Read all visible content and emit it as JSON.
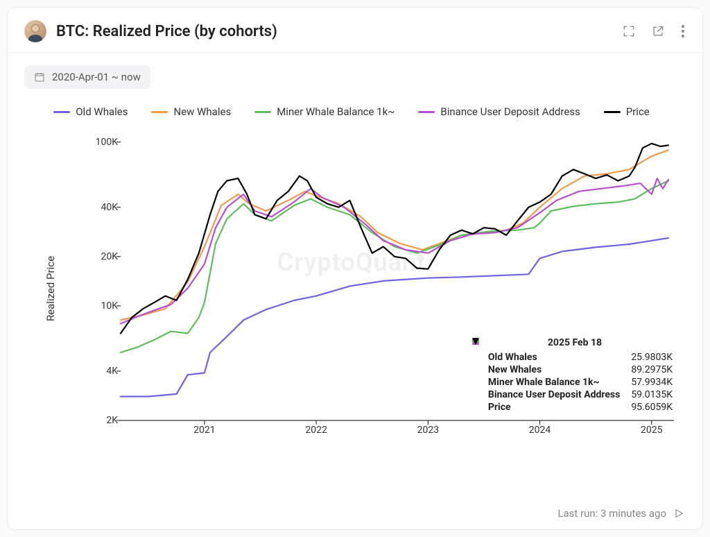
{
  "header": {
    "title": "BTC: Realized Price (by cohorts)"
  },
  "date_range": "2020-Apr-01 ~ now",
  "watermark": "CryptoQuant",
  "footer": {
    "label": "Last run: 3 minutes ago"
  },
  "chart": {
    "type": "line",
    "y_axis": {
      "label": "Realized Price",
      "scale": "log",
      "ylim": [
        2000,
        120000
      ],
      "ticks": [
        {
          "v": 2000,
          "label": "2K"
        },
        {
          "v": 4000,
          "label": "4K"
        },
        {
          "v": 10000,
          "label": "10K"
        },
        {
          "v": 20000,
          "label": "20K"
        },
        {
          "v": 40000,
          "label": "40K"
        },
        {
          "v": 100000,
          "label": "100K"
        }
      ],
      "label_fontsize": 15,
      "tick_fontsize": 14
    },
    "x_axis": {
      "xlim": [
        2020.25,
        2025.2
      ],
      "ticks": [
        {
          "v": 2021,
          "label": "2021"
        },
        {
          "v": 2022,
          "label": "2022"
        },
        {
          "v": 2023,
          "label": "2023"
        },
        {
          "v": 2024,
          "label": "2024"
        },
        {
          "v": 2025,
          "label": "2025"
        }
      ],
      "tick_fontsize": 14
    },
    "background_color": "#ffffff",
    "axis_line_color": "#333333",
    "line_width": 2.2,
    "series": [
      {
        "id": "old_whales",
        "name": "Old Whales",
        "color": "#6e62e5",
        "points": [
          [
            2020.25,
            2800
          ],
          [
            2020.5,
            2800
          ],
          [
            2020.75,
            2900
          ],
          [
            2020.85,
            3800
          ],
          [
            2021.0,
            3900
          ],
          [
            2021.05,
            5200
          ],
          [
            2021.2,
            6500
          ],
          [
            2021.35,
            8200
          ],
          [
            2021.55,
            9500
          ],
          [
            2021.8,
            10800
          ],
          [
            2022.0,
            11500
          ],
          [
            2022.3,
            13200
          ],
          [
            2022.6,
            14200
          ],
          [
            2023.0,
            14800
          ],
          [
            2023.3,
            15000
          ],
          [
            2023.6,
            15300
          ],
          [
            2023.9,
            15600
          ],
          [
            2024.0,
            19500
          ],
          [
            2024.2,
            21500
          ],
          [
            2024.5,
            22800
          ],
          [
            2024.8,
            23800
          ],
          [
            2025.0,
            25000
          ],
          [
            2025.15,
            25980
          ]
        ]
      },
      {
        "id": "new_whales",
        "name": "New Whales",
        "color": "#f2994a",
        "points": [
          [
            2020.25,
            8200
          ],
          [
            2020.45,
            8800
          ],
          [
            2020.65,
            9600
          ],
          [
            2020.85,
            14000
          ],
          [
            2021.0,
            23000
          ],
          [
            2021.15,
            41000
          ],
          [
            2021.3,
            48000
          ],
          [
            2021.4,
            42000
          ],
          [
            2021.55,
            38000
          ],
          [
            2021.75,
            44000
          ],
          [
            2021.9,
            50000
          ],
          [
            2022.0,
            47000
          ],
          [
            2022.2,
            42000
          ],
          [
            2022.4,
            35000
          ],
          [
            2022.55,
            28000
          ],
          [
            2022.75,
            24000
          ],
          [
            2022.95,
            22000
          ],
          [
            2023.1,
            24000
          ],
          [
            2023.3,
            27000
          ],
          [
            2023.5,
            28000
          ],
          [
            2023.7,
            29000
          ],
          [
            2023.85,
            32000
          ],
          [
            2024.0,
            40000
          ],
          [
            2024.2,
            52000
          ],
          [
            2024.4,
            62000
          ],
          [
            2024.6,
            64000
          ],
          [
            2024.8,
            68000
          ],
          [
            2025.0,
            82000
          ],
          [
            2025.15,
            89297
          ]
        ]
      },
      {
        "id": "miner",
        "name": "Miner Whale Balance 1k~",
        "color": "#5bbf5b",
        "points": [
          [
            2020.25,
            5200
          ],
          [
            2020.4,
            5600
          ],
          [
            2020.55,
            6200
          ],
          [
            2020.7,
            7000
          ],
          [
            2020.85,
            6800
          ],
          [
            2020.95,
            8500
          ],
          [
            2021.0,
            10500
          ],
          [
            2021.1,
            24000
          ],
          [
            2021.2,
            34000
          ],
          [
            2021.35,
            42000
          ],
          [
            2021.45,
            36000
          ],
          [
            2021.6,
            33000
          ],
          [
            2021.8,
            41000
          ],
          [
            2021.95,
            45000
          ],
          [
            2022.1,
            40000
          ],
          [
            2022.3,
            36000
          ],
          [
            2022.5,
            28000
          ],
          [
            2022.7,
            23000
          ],
          [
            2022.9,
            21000
          ],
          [
            2023.1,
            23500
          ],
          [
            2023.3,
            27000
          ],
          [
            2023.55,
            28500
          ],
          [
            2023.8,
            29000
          ],
          [
            2023.95,
            30000
          ],
          [
            2024.0,
            32000
          ],
          [
            2024.1,
            38000
          ],
          [
            2024.3,
            40500
          ],
          [
            2024.5,
            42000
          ],
          [
            2024.7,
            43000
          ],
          [
            2024.85,
            45000
          ],
          [
            2025.0,
            52000
          ],
          [
            2025.15,
            57993
          ]
        ]
      },
      {
        "id": "binance",
        "name": "Binance User Deposit Address",
        "color": "#b84fd1",
        "points": [
          [
            2020.25,
            7800
          ],
          [
            2020.4,
            8600
          ],
          [
            2020.55,
            9400
          ],
          [
            2020.7,
            10200
          ],
          [
            2020.85,
            12800
          ],
          [
            2021.0,
            18000
          ],
          [
            2021.1,
            30000
          ],
          [
            2021.2,
            40000
          ],
          [
            2021.35,
            48000
          ],
          [
            2021.45,
            38000
          ],
          [
            2021.6,
            35000
          ],
          [
            2021.8,
            43000
          ],
          [
            2021.95,
            52000
          ],
          [
            2022.05,
            46000
          ],
          [
            2022.25,
            40000
          ],
          [
            2022.45,
            31000
          ],
          [
            2022.6,
            25000
          ],
          [
            2022.8,
            22000
          ],
          [
            2023.0,
            21000
          ],
          [
            2023.2,
            25000
          ],
          [
            2023.4,
            27500
          ],
          [
            2023.6,
            28000
          ],
          [
            2023.8,
            30000
          ],
          [
            2024.0,
            37000
          ],
          [
            2024.15,
            44000
          ],
          [
            2024.35,
            50000
          ],
          [
            2024.55,
            52000
          ],
          [
            2024.75,
            54000
          ],
          [
            2024.9,
            56000
          ],
          [
            2025.0,
            48000
          ],
          [
            2025.05,
            60000
          ],
          [
            2025.1,
            52000
          ],
          [
            2025.15,
            59014
          ]
        ]
      },
      {
        "id": "price",
        "name": "Price",
        "color": "#000000",
        "points": [
          [
            2020.25,
            6800
          ],
          [
            2020.35,
            8500
          ],
          [
            2020.45,
            9600
          ],
          [
            2020.55,
            10500
          ],
          [
            2020.65,
            11500
          ],
          [
            2020.75,
            10800
          ],
          [
            2020.85,
            14500
          ],
          [
            2020.95,
            21000
          ],
          [
            2021.05,
            36000
          ],
          [
            2021.12,
            50000
          ],
          [
            2021.2,
            58000
          ],
          [
            2021.3,
            60000
          ],
          [
            2021.38,
            48000
          ],
          [
            2021.45,
            36000
          ],
          [
            2021.55,
            34000
          ],
          [
            2021.65,
            44000
          ],
          [
            2021.75,
            50000
          ],
          [
            2021.85,
            62000
          ],
          [
            2021.92,
            58000
          ],
          [
            2022.0,
            46000
          ],
          [
            2022.1,
            42000
          ],
          [
            2022.2,
            40000
          ],
          [
            2022.3,
            44000
          ],
          [
            2022.4,
            30000
          ],
          [
            2022.5,
            21000
          ],
          [
            2022.6,
            23000
          ],
          [
            2022.7,
            20000
          ],
          [
            2022.8,
            19500
          ],
          [
            2022.9,
            17000
          ],
          [
            2023.0,
            16800
          ],
          [
            2023.1,
            22000
          ],
          [
            2023.2,
            27000
          ],
          [
            2023.3,
            29000
          ],
          [
            2023.4,
            27500
          ],
          [
            2023.5,
            30000
          ],
          [
            2023.6,
            29500
          ],
          [
            2023.7,
            27000
          ],
          [
            2023.8,
            33000
          ],
          [
            2023.9,
            40000
          ],
          [
            2024.0,
            43000
          ],
          [
            2024.1,
            48000
          ],
          [
            2024.2,
            62000
          ],
          [
            2024.3,
            68000
          ],
          [
            2024.4,
            64000
          ],
          [
            2024.5,
            60000
          ],
          [
            2024.6,
            63000
          ],
          [
            2024.7,
            58000
          ],
          [
            2024.8,
            62000
          ],
          [
            2024.85,
            70000
          ],
          [
            2024.92,
            92000
          ],
          [
            2025.0,
            98000
          ],
          [
            2025.08,
            94000
          ],
          [
            2025.15,
            95606
          ]
        ]
      }
    ]
  },
  "tooltip": {
    "date": "2025 Feb 18",
    "rows": [
      {
        "marker": "circle",
        "color": "#6e62e5",
        "label": "Old Whales",
        "value": "25.9803K"
      },
      {
        "marker": "diamond",
        "color": "#f2994a",
        "label": "New Whales",
        "value": "89.2975K"
      },
      {
        "marker": "square",
        "color": "#5bbf5b",
        "label": "Miner Whale Balance 1k~",
        "value": "57.9934K"
      },
      {
        "marker": "triangle",
        "color": "#b84fd1",
        "label": "Binance User Deposit Address",
        "value": "59.0135K"
      },
      {
        "marker": "tri-down",
        "color": "#000000",
        "label": "Price",
        "value": "95.6059K"
      }
    ]
  }
}
